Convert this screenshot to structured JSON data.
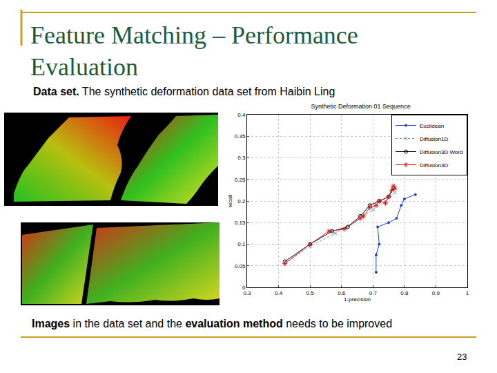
{
  "slide": {
    "title": [
      "Feature Matching – Performance",
      "Evaluation"
    ],
    "subtitle": [
      {
        "text": "Data set.",
        "bold": true
      },
      {
        "text": " The synthetic deformation data set from Haibin Ling",
        "bold": false
      }
    ],
    "footer": [
      {
        "text": "Images",
        "bold": true
      },
      {
        "text": " in the data set and the ",
        "bold": false
      },
      {
        "text": "evaluation method",
        "bold": true
      },
      {
        "text": " needs to be improved",
        "bold": false
      }
    ],
    "page_number": "23"
  },
  "chart_data": {
    "type": "line",
    "title": "Synthetic Deformation 01 Sequence",
    "x_label": "1-precision",
    "y_label": "recall",
    "xlim": [
      0.3,
      1
    ],
    "xticks": [
      0.3,
      0.4,
      0.5,
      0.6,
      0.7,
      0.8,
      0.9,
      1
    ],
    "ylim": [
      0,
      0.4
    ],
    "yticks": [
      0,
      0.05,
      0.1,
      0.15,
      0.2,
      0.25,
      0.3,
      0.35,
      0.4
    ],
    "grid": true,
    "legend": "top-right",
    "series": [
      {
        "name": "Euclidean",
        "color": "#1f3fbf",
        "marker": "dot",
        "line_style": "solid",
        "x": [
          0.71,
          0.71,
          0.72,
          0.715,
          0.75,
          0.775,
          0.79,
          0.8,
          0.835
        ],
        "values": [
          0.035,
          0.075,
          0.1,
          0.14,
          0.15,
          0.16,
          0.19,
          0.205,
          0.215
        ]
      },
      {
        "name": "Diffusion1D",
        "color": "#5f8fcf",
        "marker": "x",
        "line_style": "dotted",
        "x": [
          0.42,
          0.5,
          0.58,
          0.66,
          0.7,
          0.74,
          0.77
        ],
        "values": [
          0.055,
          0.095,
          0.125,
          0.16,
          0.18,
          0.2,
          0.22
        ]
      },
      {
        "name": "Diffusion3D Word",
        "color": "#000000",
        "marker": "circle",
        "line_style": "solid",
        "x": [
          0.42,
          0.5,
          0.57,
          0.62,
          0.66,
          0.69,
          0.72,
          0.75,
          0.765
        ],
        "values": [
          0.06,
          0.1,
          0.13,
          0.14,
          0.165,
          0.19,
          0.2,
          0.21,
          0.23
        ]
      },
      {
        "name": "Diffusion3D",
        "color": "#d62020",
        "marker": "star",
        "line_style": "solid",
        "x": [
          0.42,
          0.5,
          0.56,
          0.61,
          0.66,
          0.67,
          0.69,
          0.71,
          0.72,
          0.74,
          0.75,
          0.76,
          0.765,
          0.77
        ],
        "values": [
          0.055,
          0.1,
          0.13,
          0.135,
          0.16,
          0.165,
          0.185,
          0.19,
          0.2,
          0.195,
          0.21,
          0.225,
          0.235,
          0.23
        ]
      }
    ]
  }
}
